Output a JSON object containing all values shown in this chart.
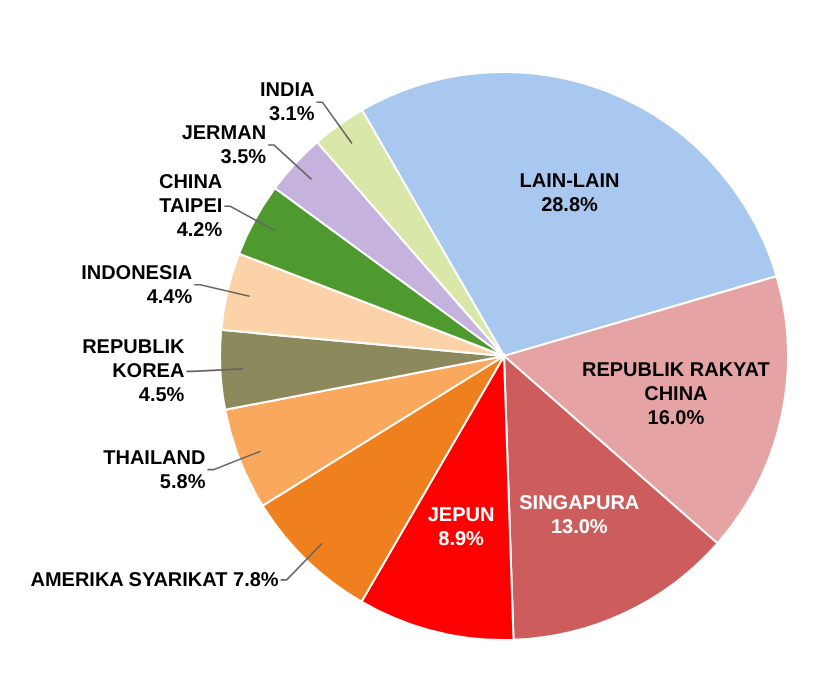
{
  "chart_data": {
    "type": "pie",
    "categories": [
      "LAIN-LAIN",
      "REPUBLIK RAKYAT CHINA",
      "SINGAPURA",
      "JEPUN",
      "AMERIKA SYARIKAT",
      "THAILAND",
      "REPUBLIK KOREA",
      "INDONESIA",
      "CHINA TAIPEI",
      "JERMAN",
      "INDIA"
    ],
    "values": [
      28.8,
      16.0,
      13.0,
      8.9,
      7.8,
      5.8,
      4.5,
      4.4,
      4.2,
      3.5,
      3.1
    ],
    "value_labels": [
      "28.8%",
      "16.0%",
      "13.0%",
      "8.9%",
      "7.8%",
      "5.8%",
      "4.5%",
      "4.4%",
      "4.2%",
      "3.5%",
      "3.1%"
    ],
    "colors": [
      "#a9c8f0",
      "#e6a3a3",
      "#cd5c5c",
      "#ff0000",
      "#f07f1e",
      "#f9a85e",
      "#8c8a5c",
      "#fcd3a8",
      "#4e9a2e",
      "#c5b3dd",
      "#d9e8a8"
    ],
    "legend": false
  }
}
